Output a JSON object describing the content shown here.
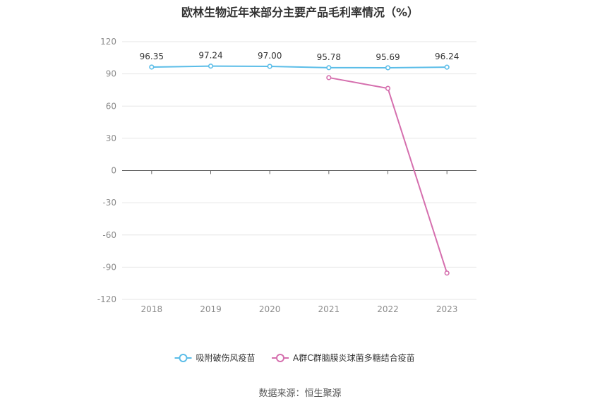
{
  "title": "欧林生物近年来部分主要产品毛利率情况（%）",
  "source": "数据来源：恒生聚源",
  "chart_data": {
    "type": "line",
    "title": "欧林生物近年来部分主要产品毛利率情况（%）",
    "x": [
      "2018",
      "2019",
      "2020",
      "2021",
      "2022",
      "2023"
    ],
    "ylim": [
      -120,
      120
    ],
    "yticks": [
      120,
      90,
      60,
      30,
      0,
      -30,
      -60,
      -90,
      -120
    ],
    "ytick_labels": [
      "120",
      "90",
      "60",
      "30",
      "0",
      "-30",
      "-60",
      "-90",
      "-120"
    ],
    "grid": true,
    "legend": "bottom-center",
    "series": [
      {
        "name": "吸附破伤风疫苗",
        "color": "#5bbde8",
        "values": [
          96.35,
          97.24,
          97.0,
          95.78,
          95.69,
          96.24
        ],
        "labels": [
          "96.35",
          "97.24",
          "97.00",
          "95.78",
          "95.69",
          "96.24"
        ]
      },
      {
        "name": "A群C群脑膜炎球菌多糖结合疫苗",
        "color": "#d56fae",
        "values": [
          null,
          null,
          null,
          86.5,
          76.5,
          -95.5
        ],
        "labels": []
      }
    ]
  }
}
